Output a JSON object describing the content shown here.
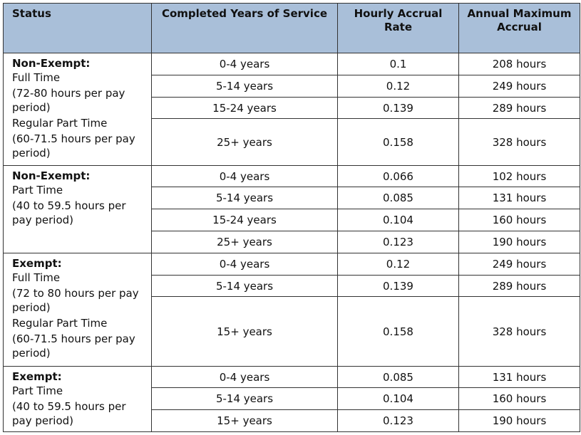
{
  "table": {
    "header": [
      "Status",
      "Completed Years of Service",
      "Hourly Accrual Rate",
      "Annual Maximum Accrual"
    ],
    "groups": [
      {
        "status": {
          "title": "Non-Exempt:",
          "lines": [
            "Full Time",
            "(72-80 hours per pay period)",
            "Regular Part Time",
            "(60-71.5 hours per pay period)"
          ]
        },
        "rows": [
          [
            "0-4 years",
            "0.1",
            "208 hours"
          ],
          [
            "5-14 years",
            "0.12",
            "249 hours"
          ],
          [
            "15-24 years",
            "0.139",
            "289 hours"
          ],
          [
            "25+ years",
            "0.158",
            "328 hours"
          ]
        ]
      },
      {
        "status": {
          "title": "Non-Exempt:",
          "lines": [
            "Part Time",
            "(40 to 59.5 hours per pay period)"
          ]
        },
        "rows": [
          [
            "0-4 years",
            "0.066",
            "102 hours"
          ],
          [
            "5-14 years",
            "0.085",
            "131 hours"
          ],
          [
            "15-24 years",
            "0.104",
            "160 hours"
          ],
          [
            "25+ years",
            "0.123",
            "190 hours"
          ]
        ]
      },
      {
        "status": {
          "title": "Exempt:",
          "lines": [
            "Full Time",
            "(72 to 80 hours per pay period)",
            "Regular Part Time",
            "(60-71.5 hours per pay period)"
          ]
        },
        "rows": [
          [
            "0-4 years",
            "0.12",
            "249 hours"
          ],
          [
            "5-14 years",
            "0.139",
            "289 hours"
          ],
          [
            "15+ years",
            "0.158",
            "328 hours"
          ]
        ]
      },
      {
        "status": {
          "title": "Exempt:",
          "lines": [
            "Part Time",
            "(40 to 59.5 hours per pay period)"
          ]
        },
        "rows": [
          [
            "0-4 years",
            "0.085",
            "131 hours"
          ],
          [
            "5-14 years",
            "0.104",
            "160 hours"
          ],
          [
            "15+ years",
            "0.123",
            "190 hours"
          ]
        ]
      }
    ]
  }
}
